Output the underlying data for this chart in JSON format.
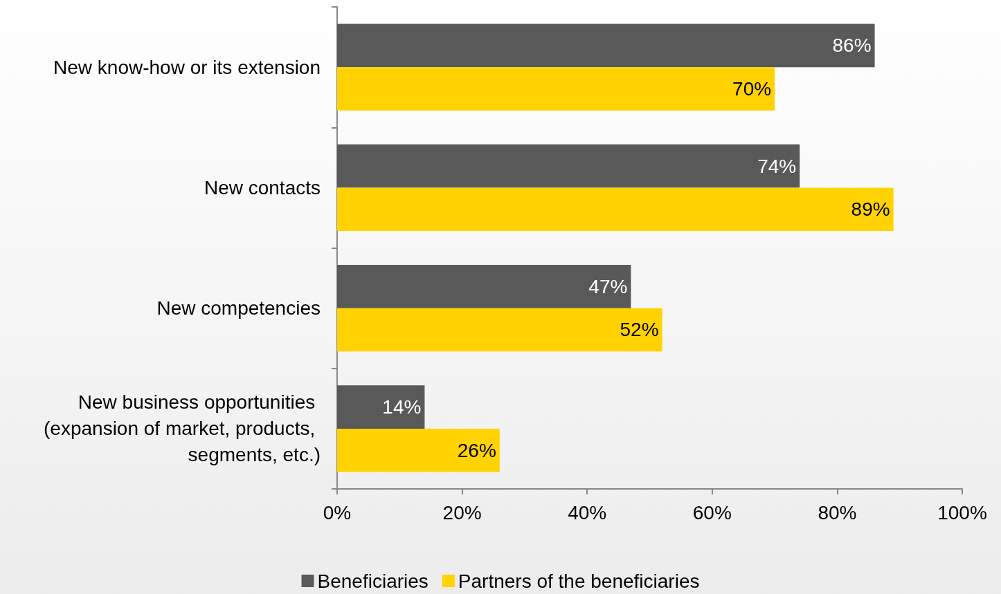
{
  "chart_data": {
    "type": "bar",
    "orientation": "horizontal",
    "categories": [
      "New know-how or its extension",
      "New contacts",
      "New competencies",
      "New business opportunities (expansion of market, products, segments, etc.)"
    ],
    "series": [
      {
        "name": "Beneficiaries",
        "color": "#595959",
        "values": [
          86,
          74,
          47,
          14
        ],
        "value_labels": [
          "86%",
          "74%",
          "47%",
          "14%"
        ]
      },
      {
        "name": "Partners of the beneficiaries",
        "color": "#ffd200",
        "values": [
          70,
          89,
          52,
          26
        ],
        "value_labels": [
          "70%",
          "89%",
          "52%",
          "26%"
        ]
      }
    ],
    "xlim": [
      0,
      100
    ],
    "xticks": [
      {
        "value": 0,
        "label": "0%"
      },
      {
        "value": 20,
        "label": "20%"
      },
      {
        "value": 40,
        "label": "40%"
      },
      {
        "value": 60,
        "label": "60%"
      },
      {
        "value": 80,
        "label": "80%"
      },
      {
        "value": 100,
        "label": "100%"
      }
    ],
    "grid": false,
    "legend": "bottom"
  }
}
